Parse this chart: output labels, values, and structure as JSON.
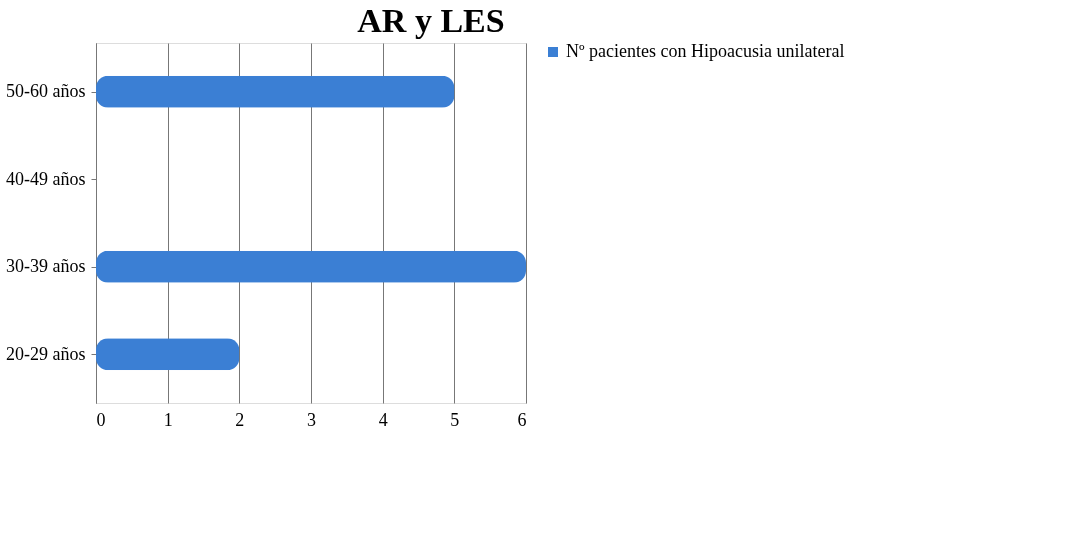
{
  "chart_data": {
    "type": "bar",
    "orientation": "horizontal",
    "title": "AR y LES",
    "categories": [
      "50-60 años",
      "40-49 años",
      "30-39 años",
      "20-29 años"
    ],
    "series": [
      {
        "name": "Nº pacientes con Hipoacusia unilateral",
        "color": "#3b7fd4",
        "values": [
          5,
          0,
          6,
          2
        ]
      }
    ],
    "xlim": [
      0,
      6
    ],
    "xticks": [
      0,
      1,
      2,
      3,
      4,
      5,
      6
    ],
    "grid": "x",
    "legend": "right"
  }
}
